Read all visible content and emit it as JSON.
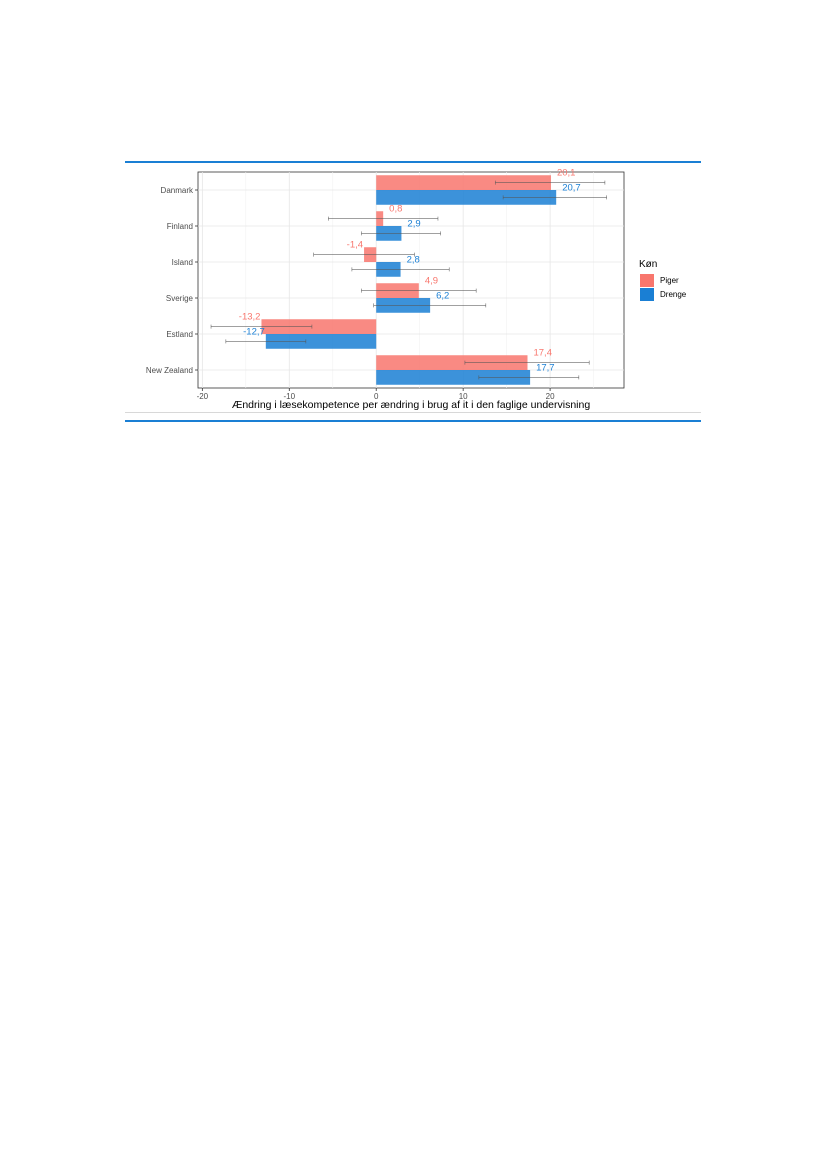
{
  "chart_data": {
    "type": "bar",
    "orientation": "horizontal",
    "categories": [
      "Danmark",
      "Finland",
      "Island",
      "Sverige",
      "Estland",
      "New Zealand"
    ],
    "series": [
      {
        "name": "Piger",
        "color": "#f8766d",
        "values": [
          20.1,
          0.8,
          -1.4,
          4.9,
          -13.2,
          17.4
        ],
        "labels": [
          "20,1",
          "0,8",
          "-1,4",
          "4,9",
          "-13,2",
          "17,4"
        ],
        "ci_low": [
          13.7,
          -5.5,
          -7.2,
          -1.7,
          -19.0,
          10.2
        ],
        "ci_high": [
          26.3,
          7.1,
          4.4,
          11.5,
          -7.4,
          24.5
        ]
      },
      {
        "name": "Drenge",
        "color": "#1a7fd4",
        "values": [
          20.7,
          2.9,
          2.8,
          6.2,
          -12.7,
          17.7
        ],
        "labels": [
          "20,7",
          "2,9",
          "2,8",
          "6,2",
          "-12,7",
          "17,7"
        ],
        "ci_low": [
          14.6,
          -1.7,
          -2.8,
          -0.3,
          -17.3,
          11.8
        ],
        "ci_high": [
          26.5,
          7.4,
          8.4,
          12.6,
          -8.1,
          23.3
        ]
      }
    ],
    "xlabel": "Ændring i læsekompetence per ændring i brug af it i den faglige undervisning",
    "xlim": [
      -20.5,
      28.5
    ],
    "xticks": [
      -20,
      -10,
      0,
      10,
      20
    ],
    "tick_labels": [
      "-20",
      "-10",
      "0",
      "10",
      "20"
    ],
    "grid": true,
    "legend": {
      "title": "Køn",
      "position": "right",
      "entries": [
        "Piger",
        "Drenge"
      ]
    }
  }
}
